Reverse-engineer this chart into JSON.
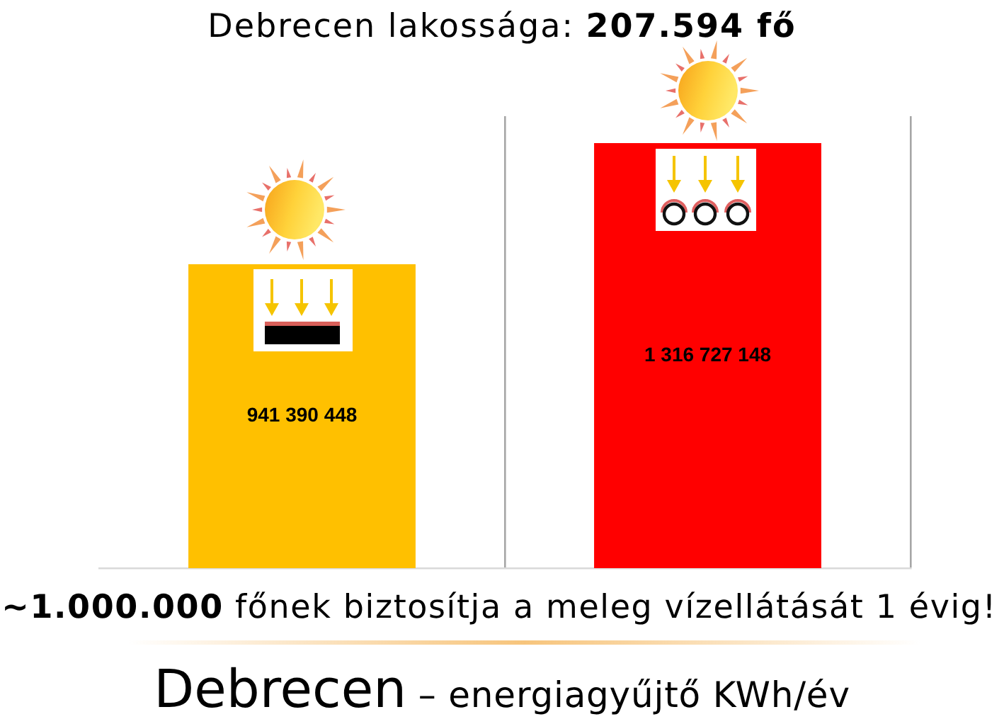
{
  "chart_data": {
    "type": "bar",
    "title": "Debrecen lakossága: 207.594 fő",
    "xlabel": "Debrecen – energiagyűjtő KWh/év",
    "annotations": [
      "~1.000.000 főnek biztosítja a meleg vízellátását 1 évig!"
    ],
    "categories": [
      null,
      null
    ],
    "values": [
      941390448,
      1316727148
    ],
    "colors": [
      "#ffc000",
      "#ff0000"
    ],
    "value_labels": [
      "941 390 448",
      "1 316 727 148"
    ],
    "ylim": [
      0,
      1400000000
    ],
    "grid": "x",
    "tick_labels": false
  }
}
